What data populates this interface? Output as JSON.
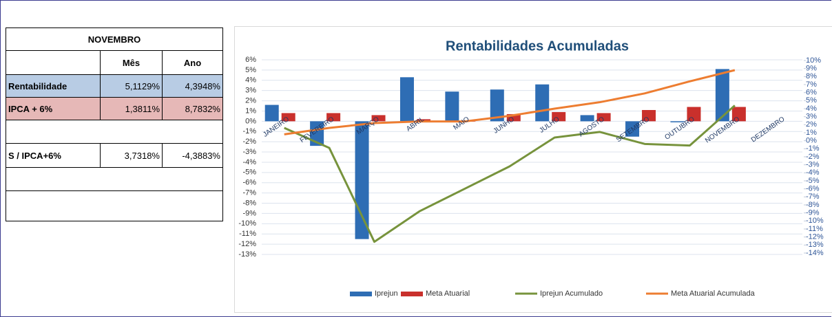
{
  "table": {
    "title": "NOVEMBRO",
    "headers": [
      "Mês",
      "Ano"
    ],
    "rows": [
      [
        "Rentabilidade",
        "5,1129%",
        "4,3948%"
      ],
      [
        "IPCA + 6%",
        "1,3811%",
        "8,7832%"
      ],
      [
        "S / IPCA+6%",
        "3,7318%",
        "-4,3883%"
      ]
    ]
  },
  "chart_data": {
    "type": "bar-line",
    "title": "Rentabilidades  Acumuladas",
    "categories": [
      "JANEIRO",
      "FEVEREIRO",
      "MARÇO",
      "ABRIL",
      "MAIO",
      "JUNHO",
      "JULHO",
      "AGOSTO",
      "SETEMBRO",
      "OUTUBRO",
      "NOVEMBRO",
      "DEZEMBRO"
    ],
    "series": [
      {
        "name": "Iprejun",
        "type": "bar",
        "color": "#2e6db4",
        "values": [
          1.6,
          -2.4,
          -11.5,
          4.3,
          2.9,
          3.1,
          3.6,
          0.6,
          -1.5,
          -0.1,
          5.1,
          null
        ]
      },
      {
        "name": "Meta Atuarial",
        "type": "bar",
        "color": "#c9302c",
        "values": [
          0.8,
          0.8,
          0.6,
          0.2,
          0,
          0.7,
          0.9,
          0.8,
          1.1,
          1.4,
          1.4,
          null
        ]
      },
      {
        "name": "Iprejun Acumulado",
        "type": "line",
        "axis": "y2",
        "color": "#77933c",
        "values": [
          1.6,
          -0.9,
          -12.6,
          -8.8,
          -6,
          -3.2,
          0.4,
          1.1,
          -0.4,
          -0.6,
          4.4,
          null
        ]
      },
      {
        "name": "Meta Atuarial Acumulada",
        "type": "line",
        "axis": "y2",
        "color": "#ed7d31",
        "values": [
          0.8,
          1.6,
          2.2,
          2.4,
          2.4,
          3.1,
          4.0,
          4.8,
          5.9,
          7.4,
          8.8,
          null
        ]
      }
    ],
    "ylim": [
      -13,
      6
    ],
    "yticks": [
      {
        "value": 6,
        "label": "6%"
      },
      {
        "value": 5,
        "label": "5%"
      },
      {
        "value": 4,
        "label": "4%"
      },
      {
        "value": 3,
        "label": "3%"
      },
      {
        "value": 2,
        "label": "2%"
      },
      {
        "value": 1,
        "label": "1%"
      },
      {
        "value": 0,
        "label": "0%"
      },
      {
        "value": -1,
        "label": "-1%"
      },
      {
        "value": -2,
        "label": "-2%"
      },
      {
        "value": -3,
        "label": "-3%"
      },
      {
        "value": -4,
        "label": "-4%"
      },
      {
        "value": -5,
        "label": "-5%"
      },
      {
        "value": -6,
        "label": "-6%"
      },
      {
        "value": -7,
        "label": "-7%"
      },
      {
        "value": -8,
        "label": "-8%"
      },
      {
        "value": -9,
        "label": "-9%"
      },
      {
        "value": -10,
        "label": "-10%"
      },
      {
        "value": -11,
        "label": "-11%"
      },
      {
        "value": -12,
        "label": "-12%"
      },
      {
        "value": -13,
        "label": "-13%"
      }
    ],
    "y2lim": [
      -14,
      10
    ],
    "y2ticks": [
      {
        "value": 10,
        "label": "10%"
      },
      {
        "value": 9,
        "label": "9%"
      },
      {
        "value": 8,
        "label": "8%"
      },
      {
        "value": 7,
        "label": "7%"
      },
      {
        "value": 6,
        "label": "6%"
      },
      {
        "value": 5,
        "label": "5%"
      },
      {
        "value": 4,
        "label": "4%"
      },
      {
        "value": 3,
        "label": "3%"
      },
      {
        "value": 2,
        "label": "2%"
      },
      {
        "value": 1,
        "label": "1%"
      },
      {
        "value": 0,
        "label": "0%"
      },
      {
        "value": -1,
        "label": "-1%"
      },
      {
        "value": -2,
        "label": "-2%"
      },
      {
        "value": -3,
        "label": "-3%"
      },
      {
        "value": -4,
        "label": "-4%"
      },
      {
        "value": -5,
        "label": "-5%"
      },
      {
        "value": -6,
        "label": "-6%"
      },
      {
        "value": -7,
        "label": "-7%"
      },
      {
        "value": -8,
        "label": "-8%"
      },
      {
        "value": -9,
        "label": "-9%"
      },
      {
        "value": -10,
        "label": "-10%"
      },
      {
        "value": -11,
        "label": "-11%"
      },
      {
        "value": -12,
        "label": "-12%"
      },
      {
        "value": -13,
        "label": "-13%"
      },
      {
        "value": -14,
        "label": "-14%"
      }
    ],
    "grid": true
  }
}
